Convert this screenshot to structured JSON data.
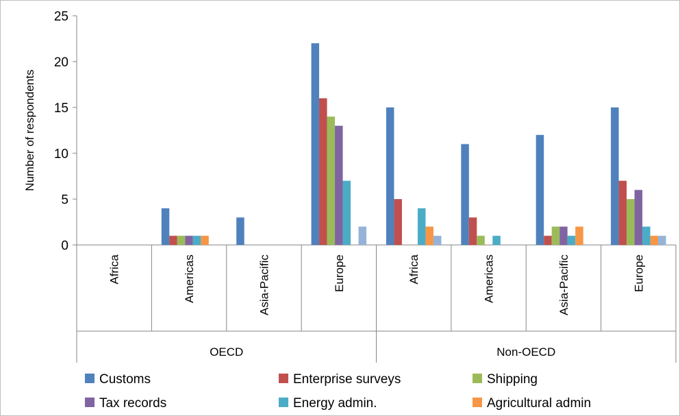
{
  "chart_data": {
    "type": "bar",
    "ylabel": "Number of respondents",
    "ylim": [
      0,
      25
    ],
    "yticks": [
      "0",
      "5",
      "10",
      "15",
      "20",
      "25"
    ],
    "grid": false,
    "legend_position": "bottom",
    "groups": [
      {
        "label": "OECD",
        "categories": [
          "Africa",
          "Americas",
          "Asia-Pacific",
          "Europe"
        ]
      },
      {
        "label": "Non-OECD",
        "categories": [
          "Africa",
          "Americas",
          "Asia-Pacific",
          "Europe"
        ]
      }
    ],
    "categories": [
      "Africa",
      "Americas",
      "Asia-Pacific",
      "Europe",
      "Africa",
      "Americas",
      "Asia-Pacific",
      "Europe"
    ],
    "series": [
      {
        "name": "Customs",
        "color": "#4F81BD",
        "values": [
          0,
          4,
          3,
          22,
          15,
          11,
          12,
          15
        ]
      },
      {
        "name": "Enterprise surveys",
        "color": "#C0504D",
        "values": [
          0,
          1,
          0,
          16,
          5,
          3,
          1,
          7
        ]
      },
      {
        "name": "Shipping",
        "color": "#9BBB59",
        "values": [
          0,
          1,
          0,
          14,
          0,
          1,
          2,
          5
        ]
      },
      {
        "name": "Tax records",
        "color": "#8064A2",
        "values": [
          0,
          1,
          0,
          13,
          0,
          0,
          2,
          6
        ]
      },
      {
        "name": "Energy admin.",
        "color": "#4BACC6",
        "values": [
          0,
          1,
          0,
          7,
          4,
          1,
          1,
          2
        ]
      },
      {
        "name": "Agricultural admin",
        "color": "#F79646",
        "values": [
          0,
          1,
          0,
          0,
          2,
          0,
          2,
          1
        ]
      },
      {
        "color": "#95B3D7",
        "values": [
          0,
          0,
          0,
          2,
          1,
          0,
          0,
          1
        ]
      }
    ]
  }
}
